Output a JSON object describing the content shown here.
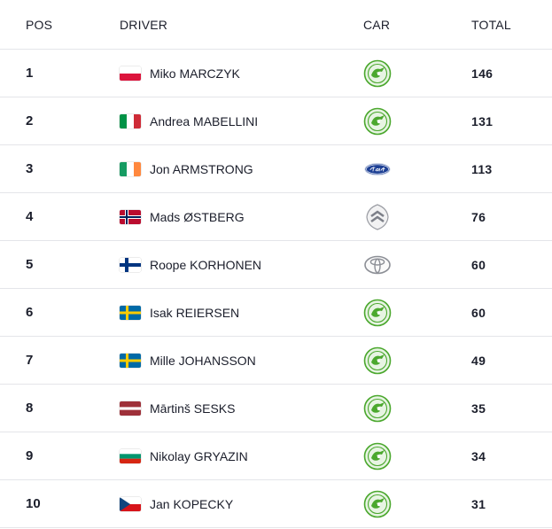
{
  "table": {
    "headers": {
      "pos": "POS",
      "driver": "DRIVER",
      "car": "CAR",
      "total": "TOTAL"
    },
    "rows": [
      {
        "pos": "1",
        "driver": "Miko MARCZYK",
        "flag": "poland-flag",
        "car": "skoda-logo",
        "total": "146"
      },
      {
        "pos": "2",
        "driver": "Andrea MABELLINI",
        "flag": "italy-flag",
        "car": "skoda-logo",
        "total": "131"
      },
      {
        "pos": "3",
        "driver": "Jon ARMSTRONG",
        "flag": "ireland-flag",
        "car": "ford-logo",
        "total": "113"
      },
      {
        "pos": "4",
        "driver": "Mads ØSTBERG",
        "flag": "norway-flag",
        "car": "citroen-logo",
        "total": "76"
      },
      {
        "pos": "5",
        "driver": "Roope KORHONEN",
        "flag": "finland-flag",
        "car": "toyota-logo",
        "total": "60"
      },
      {
        "pos": "6",
        "driver": "Isak REIERSEN",
        "flag": "sweden-flag",
        "car": "skoda-logo",
        "total": "60"
      },
      {
        "pos": "7",
        "driver": "Mille JOHANSSON",
        "flag": "sweden-flag",
        "car": "skoda-logo",
        "total": "49"
      },
      {
        "pos": "8",
        "driver": "Mārtinš SESKS",
        "flag": "latvia-flag",
        "car": "skoda-logo",
        "total": "35"
      },
      {
        "pos": "9",
        "driver": "Nikolay GRYAZIN",
        "flag": "bulgaria-flag",
        "car": "skoda-logo",
        "total": "34"
      },
      {
        "pos": "10",
        "driver": "Jan KOPECKY",
        "flag": "czechia-flag",
        "car": "skoda-logo",
        "total": "31"
      }
    ]
  },
  "colors": {
    "text": "#1b1e2b",
    "divider": "#e4e5e9",
    "skoda_green": "#4ba82e"
  }
}
